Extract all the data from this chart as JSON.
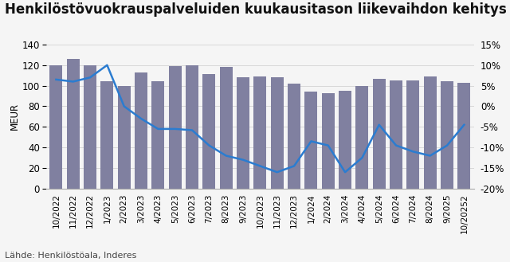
{
  "title": "Henkilöstövuokrauspalveluiden kuukausitason liikevaihdon kehitys",
  "source": "Lähde: Henkilöstöala, Inderes",
  "categories": [
    "10/2022",
    "11/2022",
    "12/2022",
    "1/2023",
    "2/2023",
    "3/2023",
    "4/2023",
    "5/2023",
    "6/2023",
    "7/2023",
    "8/2023",
    "9/2023",
    "10/2023",
    "11/2023",
    "12/2023",
    "1/2024",
    "2/2024",
    "3/2024",
    "4/2024",
    "5/2024",
    "6/2024",
    "7/2024",
    "8/2024",
    "9/2025",
    "10/20252"
  ],
  "bar_values": [
    120,
    126,
    120,
    104,
    100,
    113,
    104,
    119,
    120,
    111,
    118,
    108,
    109,
    108,
    102,
    94,
    93,
    95,
    100,
    107,
    105,
    105,
    109,
    104,
    103
  ],
  "line_values": [
    6.5,
    6.0,
    7.0,
    10.0,
    0.0,
    -3.0,
    -5.5,
    -5.5,
    -5.8,
    -9.5,
    -12.0,
    -13.0,
    -14.5,
    -16.0,
    -14.5,
    -8.5,
    -9.5,
    -16.0,
    -12.5,
    -4.5,
    -9.5,
    -11.0,
    -12.0,
    -9.5,
    -4.5
  ],
  "bar_color": "#8080a0",
  "line_color": "#2b7cd0",
  "ylabel_left": "MEUR",
  "ylim_left": [
    0,
    140
  ],
  "ylim_right": [
    -20,
    15
  ],
  "yticks_left": [
    0,
    20,
    40,
    60,
    80,
    100,
    120,
    140
  ],
  "yticks_right": [
    -20,
    -15,
    -10,
    -5,
    0,
    5,
    10,
    15
  ],
  "ytick_labels_right": [
    "-20%",
    "-15%",
    "-10%",
    "-5%",
    "0%",
    "5%",
    "10%",
    "15%"
  ],
  "background_color": "#f5f5f5",
  "title_fontsize": 12,
  "axis_fontsize": 8.5
}
